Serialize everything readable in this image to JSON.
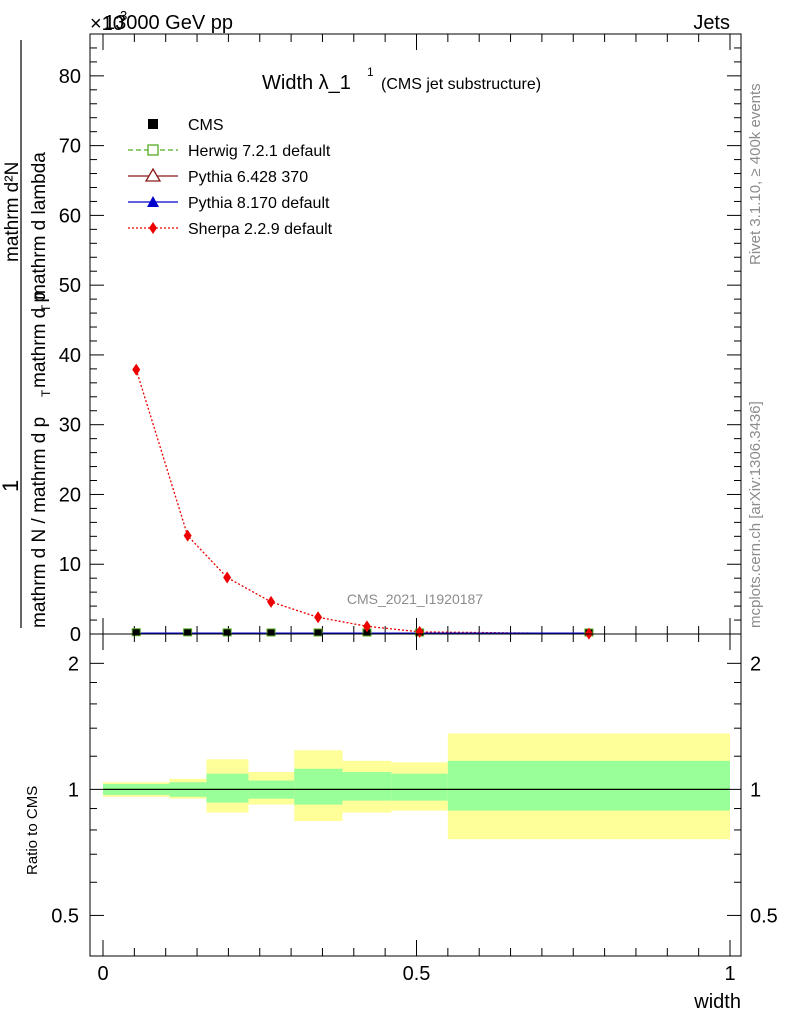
{
  "header": {
    "energy_label": "13000 GeV pp",
    "exponent_label": "×10",
    "exponent_power": "3",
    "process_label": "Jets"
  },
  "side_labels": {
    "rivet": "Rivet 3.1.10, ≥ 400k events",
    "mcplots": "mcplots.cern.ch [arXiv:1306.3436]"
  },
  "chart_data": [
    {
      "type": "line",
      "title": "Width λ_1",
      "title_superscript": "1",
      "subtitle": "(CMS jet substructure)",
      "watermark": "CMS_2021_I1920187",
      "ylabel_top": "1",
      "ylabel_numerator": "mathrm d N / mathrm d p",
      "ylabel_denominator": "mathrm d N / mathrm d p",
      "ylabel_sub1": "T",
      "ylabel_middle": "mathrm d p",
      "ylabel_sub2": "T",
      "ylabel_end": "mathrm d lambda",
      "ylabel_full_top": "mathrm d²N",
      "ylabel_full_bottom": "mathrm d p_T mathrm d lambda",
      "ylim": [
        0,
        86
      ],
      "xlim": [
        0,
        1
      ],
      "yticks": [
        0,
        10,
        20,
        30,
        40,
        50,
        60,
        70,
        80
      ],
      "ytick_labels": [
        "0",
        "10",
        "20",
        "30",
        "40",
        "50",
        "60",
        "70",
        "80"
      ],
      "legend_position": "top-left",
      "legend": [
        {
          "name": "CMS",
          "color": "#000000",
          "marker": "filled-square",
          "line": "none"
        },
        {
          "name": "Herwig 7.2.1 default",
          "color": "#55aa22",
          "marker": "open-square",
          "line": "dashed"
        },
        {
          "name": "Pythia 6.428 370",
          "color": "#8b1a1a",
          "marker": "open-triangle",
          "line": "solid"
        },
        {
          "name": "Pythia 8.170 default",
          "color": "#0000cc",
          "marker": "filled-triangle",
          "line": "solid"
        },
        {
          "name": "Sherpa 2.2.9 default",
          "color": "#ee0000",
          "marker": "filled-diamond",
          "line": "dotted"
        }
      ],
      "series": [
        {
          "name": "Sherpa 2.2.9 default",
          "x": [
            0.053,
            0.135,
            0.198,
            0.268,
            0.343,
            0.421,
            0.505,
            0.775
          ],
          "y": [
            37.9,
            14.1,
            8.1,
            4.6,
            2.4,
            1.1,
            0.3,
            0.05
          ]
        },
        {
          "name": "CMS",
          "x": [
            0.053,
            0.135,
            0.198,
            0.268,
            0.343,
            0.421,
            0.505,
            0.775
          ],
          "y": [
            0.04,
            0.02,
            0.01,
            0.005,
            0.003,
            0.002,
            0.001,
            0.0001
          ]
        }
      ]
    },
    {
      "type": "area",
      "ylabel": "Ratio to CMS",
      "xlabel": "width",
      "ylim": [
        0.4,
        2.35
      ],
      "xlim": [
        0,
        1
      ],
      "y_scale": "log",
      "yticks": [
        0.5,
        1,
        2
      ],
      "ytick_labels": [
        "0.5",
        "1",
        "2"
      ],
      "xticks": [
        0,
        0.5,
        1
      ],
      "xtick_labels": [
        "0",
        "0.5",
        "1"
      ],
      "bands": [
        {
          "x0": 0.0,
          "x1": 0.106,
          "inner": [
            0.97,
            1.03
          ],
          "outer": [
            0.96,
            1.04
          ]
        },
        {
          "x0": 0.106,
          "x1": 0.165,
          "inner": [
            0.96,
            1.04
          ],
          "outer": [
            0.95,
            1.06
          ]
        },
        {
          "x0": 0.165,
          "x1": 0.232,
          "inner": [
            0.93,
            1.09
          ],
          "outer": [
            0.88,
            1.18
          ]
        },
        {
          "x0": 0.232,
          "x1": 0.305,
          "inner": [
            0.95,
            1.05
          ],
          "outer": [
            0.92,
            1.1
          ]
        },
        {
          "x0": 0.305,
          "x1": 0.382,
          "inner": [
            0.92,
            1.12
          ],
          "outer": [
            0.84,
            1.24
          ]
        },
        {
          "x0": 0.382,
          "x1": 0.46,
          "inner": [
            0.94,
            1.1
          ],
          "outer": [
            0.88,
            1.17
          ]
        },
        {
          "x0": 0.46,
          "x1": 0.55,
          "inner": [
            0.94,
            1.09
          ],
          "outer": [
            0.89,
            1.16
          ]
        },
        {
          "x0": 0.55,
          "x1": 1.0,
          "inner": [
            0.89,
            1.17
          ],
          "outer": [
            0.76,
            1.36
          ]
        }
      ],
      "band_colors": {
        "inner": "#99ff99",
        "outer": "#ffff99"
      },
      "reference_line": 1
    }
  ]
}
